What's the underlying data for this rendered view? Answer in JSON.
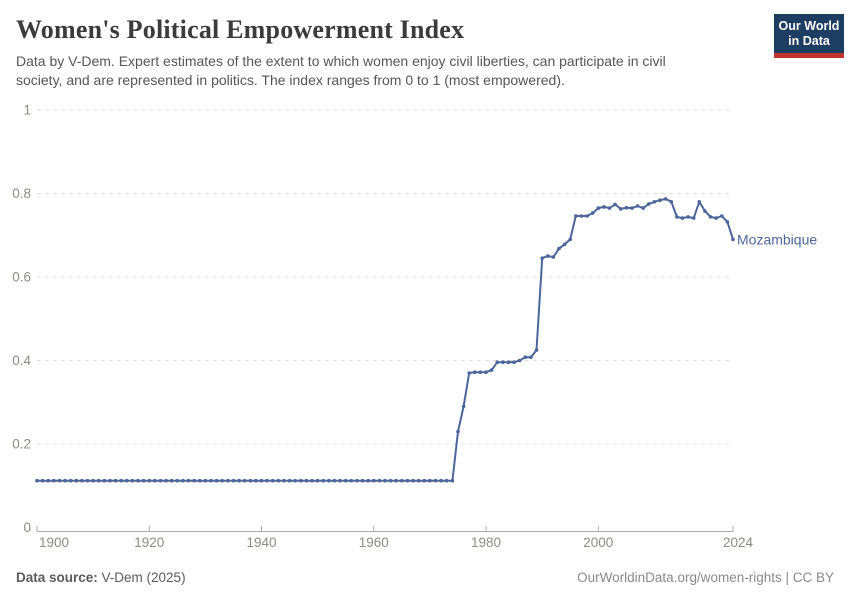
{
  "header": {
    "title": "Women's Political Empowerment Index",
    "subtitle_lines": [
      "Data by V-Dem. Expert estimates of the extent to which women enjoy civil liberties, can participate in civil",
      "society, and are represented in politics. The index ranges from 0 to 1 (most empowered)."
    ],
    "logo": {
      "line1": "Our World",
      "line2": "in Data"
    }
  },
  "footer": {
    "source_label": "Data source:",
    "source_value": " V-Dem (2025)",
    "credit": "OurWorldinData.org/women-rights | CC BY"
  },
  "colors": {
    "line": "#4c669c",
    "grid": "#dddddd",
    "axis": "#a9a9a9",
    "tick_label": "#8c8c87",
    "logo_bg": "#1d3d63",
    "logo_bar": "#c0342e"
  },
  "chart_data": {
    "type": "line",
    "title": "Women's Political Empowerment Index",
    "entity_label": "Mozambique",
    "x_start": 1900,
    "x_step": 1,
    "xlim": [
      1900,
      2024
    ],
    "ylim": [
      0,
      1
    ],
    "xticks": [
      1900,
      1920,
      1940,
      1960,
      1980,
      2000,
      2024
    ],
    "yticks": [
      0,
      0.2,
      0.4,
      0.6,
      0.8,
      1
    ],
    "grid": "dashed-horizontal",
    "legend_position": "end-of-line",
    "values": [
      0.112,
      0.112,
      0.112,
      0.112,
      0.112,
      0.112,
      0.112,
      0.112,
      0.112,
      0.112,
      0.112,
      0.112,
      0.112,
      0.112,
      0.112,
      0.112,
      0.112,
      0.112,
      0.112,
      0.112,
      0.112,
      0.112,
      0.112,
      0.112,
      0.112,
      0.112,
      0.112,
      0.112,
      0.112,
      0.112,
      0.112,
      0.112,
      0.112,
      0.112,
      0.112,
      0.112,
      0.112,
      0.112,
      0.112,
      0.112,
      0.112,
      0.112,
      0.112,
      0.112,
      0.112,
      0.112,
      0.112,
      0.112,
      0.112,
      0.112,
      0.112,
      0.112,
      0.112,
      0.112,
      0.112,
      0.112,
      0.112,
      0.112,
      0.112,
      0.112,
      0.112,
      0.112,
      0.112,
      0.112,
      0.112,
      0.112,
      0.112,
      0.112,
      0.112,
      0.112,
      0.112,
      0.112,
      0.112,
      0.112,
      0.112,
      0.23,
      0.29,
      0.37,
      0.372,
      0.372,
      0.372,
      0.377,
      0.396,
      0.396,
      0.396,
      0.396,
      0.4,
      0.408,
      0.408,
      0.425,
      0.645,
      0.65,
      0.648,
      0.668,
      0.678,
      0.69,
      0.746,
      0.746,
      0.746,
      0.753,
      0.765,
      0.768,
      0.765,
      0.774,
      0.763,
      0.766,
      0.765,
      0.77,
      0.765,
      0.775,
      0.78,
      0.784,
      0.787,
      0.78,
      0.744,
      0.741,
      0.744,
      0.741,
      0.78,
      0.758,
      0.744,
      0.741,
      0.746,
      0.732,
      0.69
    ]
  }
}
